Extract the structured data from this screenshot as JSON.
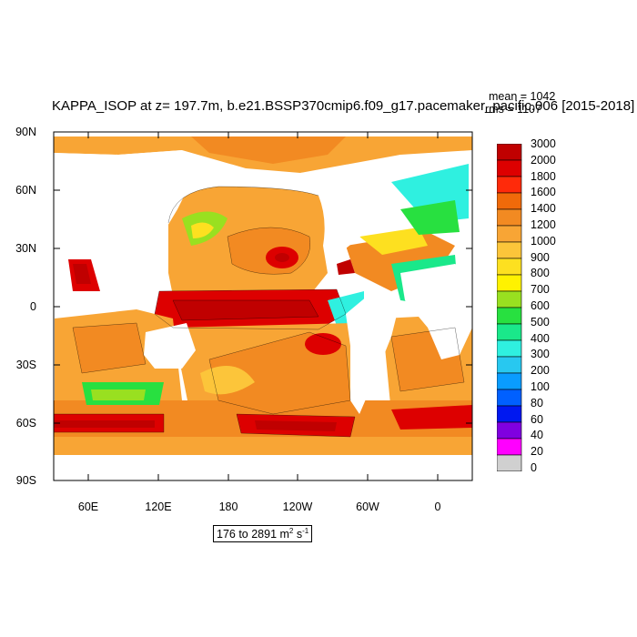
{
  "title": "KAPPA_ISOP at z= 197.7m, b.e21.BSSP370cmip6.f09_g17.pacemaker_pacific.006 [2015-2018]",
  "stats": {
    "mean": "mean = 1042",
    "rms": "rms = 1107"
  },
  "y_ticks": [
    "90N",
    "60N",
    "30N",
    "0",
    "30S",
    "60S",
    "90S"
  ],
  "x_ticks": [
    "60E",
    "120E",
    "180",
    "120W",
    "60W",
    "0"
  ],
  "colorbar": {
    "labels": [
      "3000",
      "2000",
      "1800",
      "1600",
      "1400",
      "1200",
      "1000",
      "900",
      "800",
      "700",
      "600",
      "500",
      "400",
      "300",
      "200",
      "100",
      "80",
      "60",
      "40",
      "20",
      "0"
    ],
    "colors": [
      "#c00000",
      "#dd0000",
      "#ff2a0a",
      "#f06a0a",
      "#f28a22",
      "#f8a535",
      "#fcc53a",
      "#fde020",
      "#fff200",
      "#99e020",
      "#28e040",
      "#1ae88a",
      "#2ff0e0",
      "#28c8f0",
      "#0a9cff",
      "#0060ff",
      "#0018f0",
      "#8000e0",
      "#ff00ff",
      "#d0d0d0",
      "#707070"
    ]
  },
  "range_text": "176 to 2891 m",
  "range_unit_sup1": "2",
  "range_unit_mid": " s",
  "range_unit_sup2": "-1"
}
